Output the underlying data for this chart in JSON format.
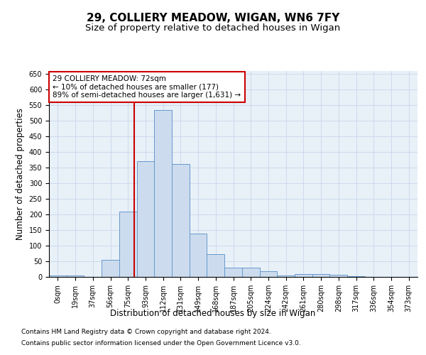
{
  "title1": "29, COLLIERY MEADOW, WIGAN, WN6 7FY",
  "title2": "Size of property relative to detached houses in Wigan",
  "xlabel": "Distribution of detached houses by size in Wigan",
  "ylabel": "Number of detached properties",
  "bar_labels": [
    "0sqm",
    "19sqm",
    "37sqm",
    "56sqm",
    "75sqm",
    "93sqm",
    "112sqm",
    "131sqm",
    "149sqm",
    "168sqm",
    "187sqm",
    "205sqm",
    "224sqm",
    "242sqm",
    "261sqm",
    "280sqm",
    "298sqm",
    "317sqm",
    "336sqm",
    "354sqm",
    "373sqm"
  ],
  "bar_values": [
    4,
    5,
    0,
    54,
    209,
    370,
    535,
    362,
    138,
    72,
    29,
    29,
    18,
    5,
    9,
    9,
    7,
    2,
    0,
    0,
    0
  ],
  "bar_width": 1.0,
  "bar_color": "#ccdcee",
  "bar_edge_color": "#6699cc",
  "bar_edge_width": 0.7,
  "marker_color": "#cc0000",
  "annotation_line1": "29 COLLIERY MEADOW: 72sqm",
  "annotation_line2": "← 10% of detached houses are smaller (177)",
  "annotation_line3": "89% of semi-detached houses are larger (1,631) →",
  "annotation_box_color": "#ffffff",
  "annotation_box_edge_color": "#cc0000",
  "ylim": [
    0,
    660
  ],
  "yticks": [
    0,
    50,
    100,
    150,
    200,
    250,
    300,
    350,
    400,
    450,
    500,
    550,
    600,
    650
  ],
  "grid_color": "#c8d8ea",
  "background_color": "#e8f0f8",
  "footer1": "Contains HM Land Registry data © Crown copyright and database right 2024.",
  "footer2": "Contains public sector information licensed under the Open Government Licence v3.0.",
  "title1_fontsize": 11,
  "title2_fontsize": 9.5,
  "axis_label_fontsize": 8.5,
  "tick_fontsize": 7,
  "annotation_fontsize": 7.5,
  "footer_fontsize": 6.5
}
